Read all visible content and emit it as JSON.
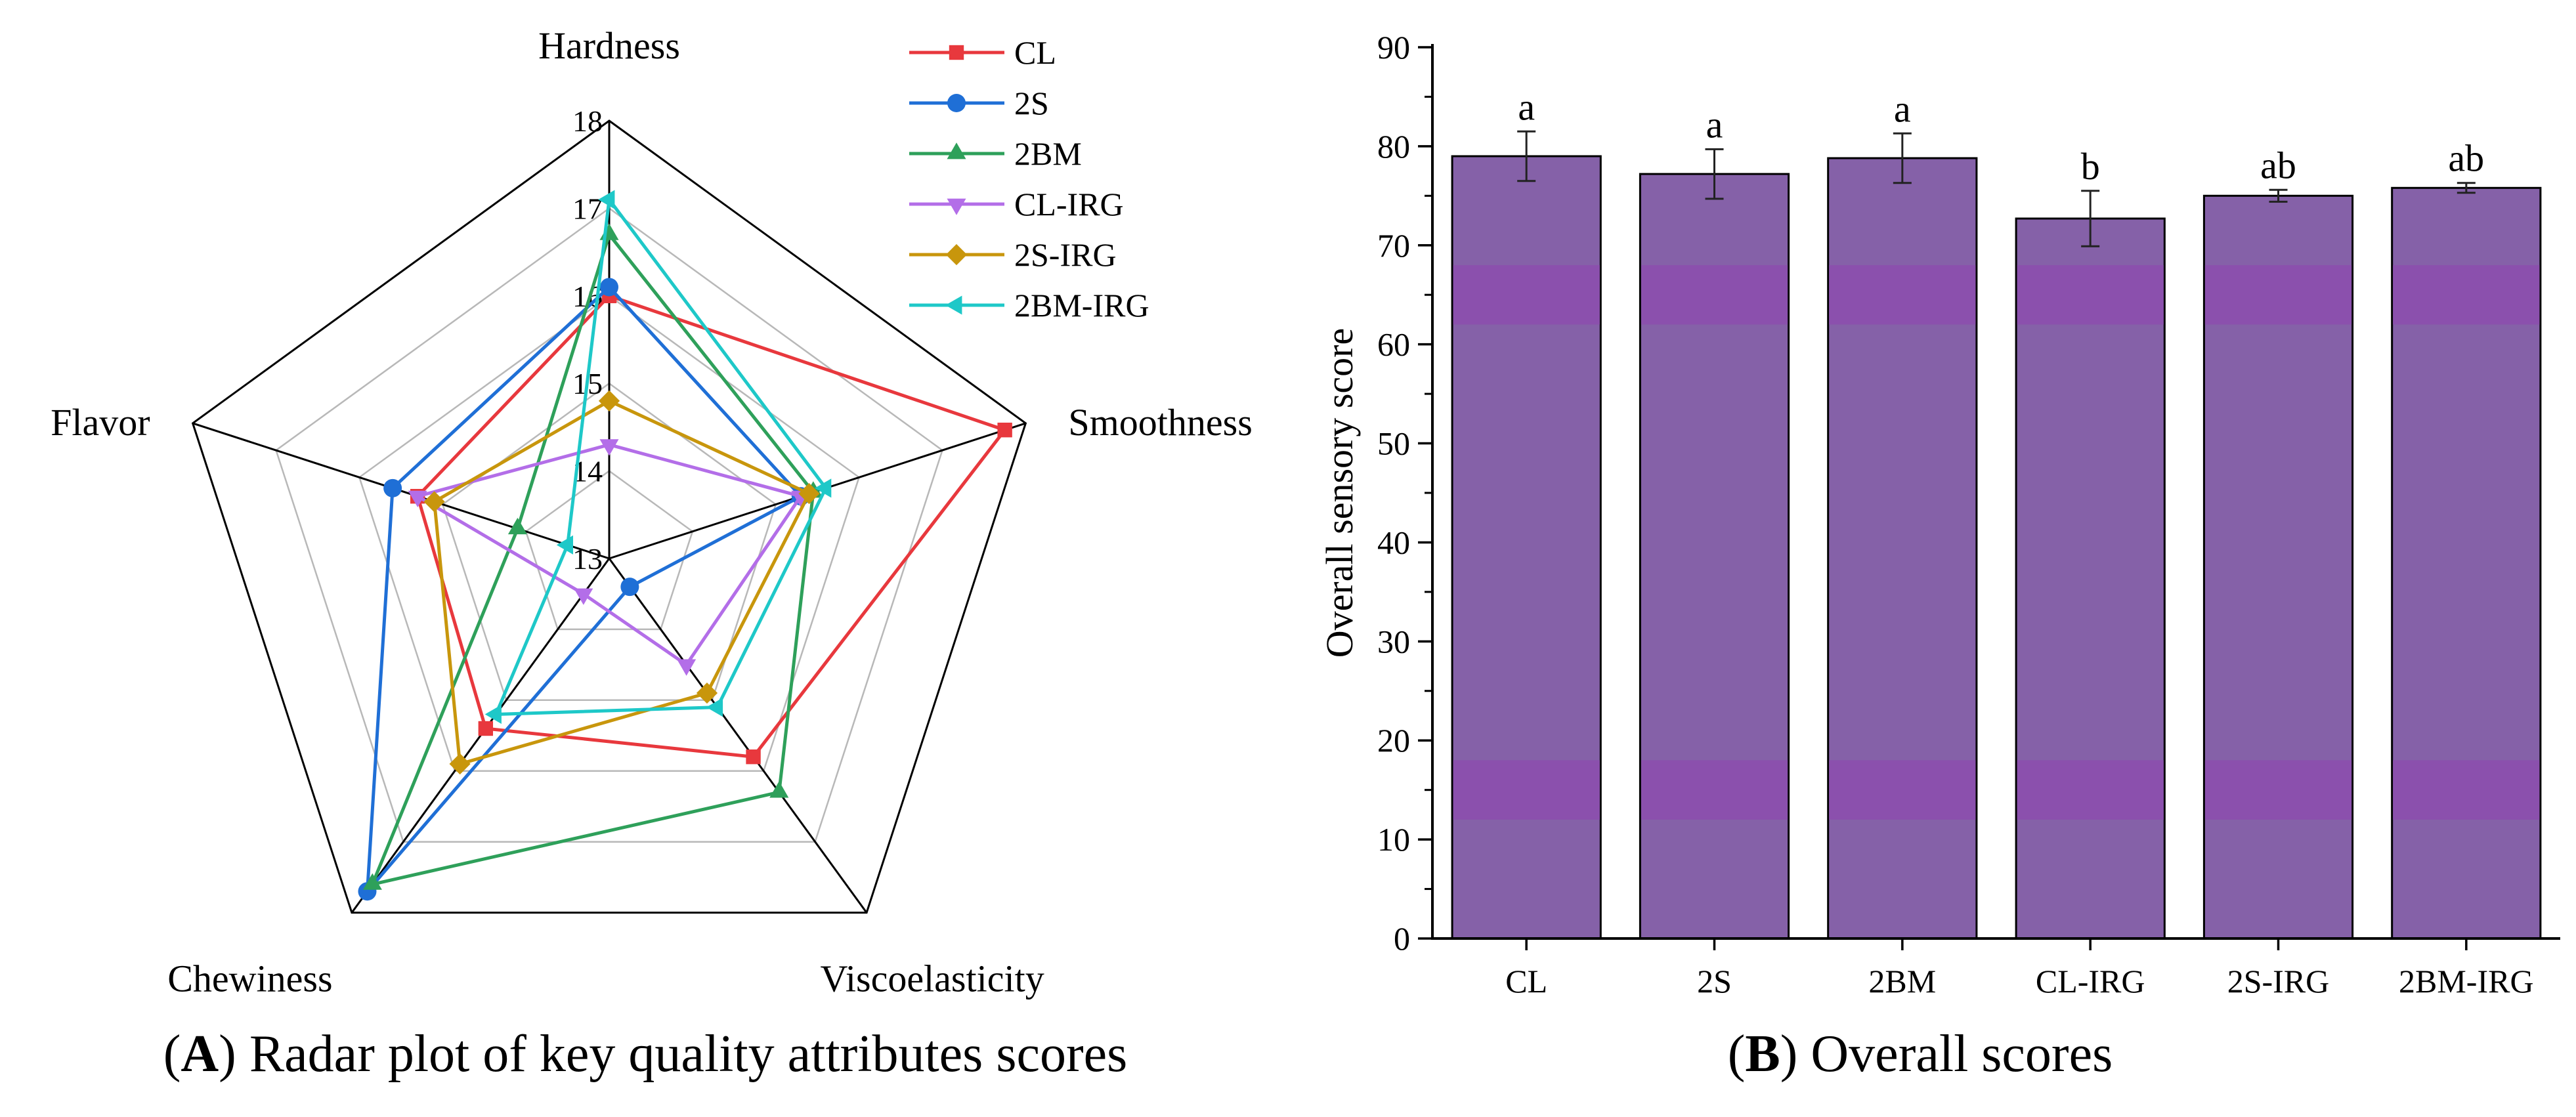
{
  "chart_data": [
    {
      "panel": "A",
      "type": "radar",
      "caption_letter": "A",
      "caption_text": "Radar plot of key quality attributes scores",
      "axes": [
        "Hardness",
        "Smoothness",
        "Viscoelasticity",
        "Chewiness",
        "Flavor"
      ],
      "range": [
        13,
        18
      ],
      "ticks": [
        13,
        14,
        15,
        16,
        17,
        18
      ],
      "series": [
        {
          "name": "CL",
          "color": "#e8383d",
          "marker": "square",
          "values": [
            16.0,
            17.75,
            15.8,
            15.4,
            15.3
          ]
        },
        {
          "name": "2S",
          "color": "#1f6fd6",
          "marker": "circle",
          "values": [
            16.1,
            15.3,
            13.4,
            17.7,
            15.6
          ]
        },
        {
          "name": "2BM",
          "color": "#2ea05a",
          "marker": "triangle-up",
          "values": [
            16.7,
            15.45,
            16.3,
            17.6,
            14.1
          ]
        },
        {
          "name": "CL-IRG",
          "color": "#b36ee8",
          "marker": "triangle-down",
          "values": [
            14.3,
            15.3,
            14.5,
            13.5,
            15.3
          ]
        },
        {
          "name": "2S-IRG",
          "color": "#c8960c",
          "marker": "diamond",
          "values": [
            14.8,
            15.4,
            14.9,
            15.9,
            15.1
          ]
        },
        {
          "name": "2BM-IRG",
          "color": "#1ec8c8",
          "marker": "triangle-left",
          "values": [
            17.1,
            15.6,
            15.1,
            15.2,
            13.5
          ]
        }
      ]
    },
    {
      "panel": "B",
      "type": "bar",
      "caption_letter": "B",
      "caption_text": "Overall scores",
      "ylabel": "Overall sensory score",
      "ylim": [
        0,
        90
      ],
      "yticks": [
        0,
        10,
        20,
        30,
        40,
        50,
        60,
        70,
        80,
        90
      ],
      "categories": [
        "CL",
        "2S",
        "2BM",
        "CL-IRG",
        "2S-IRG",
        "2BM-IRG"
      ],
      "values": [
        79.0,
        77.2,
        78.8,
        72.7,
        75.0,
        75.8
      ],
      "errors": [
        2.5,
        2.5,
        2.5,
        2.8,
        0.6,
        0.5
      ],
      "significance": [
        "a",
        "a",
        "a",
        "b",
        "ab",
        "ab"
      ],
      "bar_color": "#8561a8",
      "band_color": "#8b50ad"
    }
  ]
}
